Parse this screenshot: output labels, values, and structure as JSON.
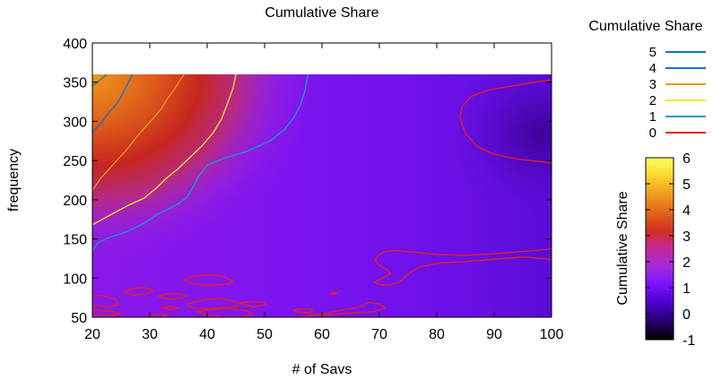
{
  "chart_data": {
    "type": "heatmap",
    "title": "Cumulative Share",
    "xlabel": "# of Savs",
    "ylabel": "frequency",
    "xlim": [
      20,
      100
    ],
    "ylim": [
      50,
      400
    ],
    "data_y_range": [
      50,
      360
    ],
    "x_ticks": [
      20,
      30,
      40,
      50,
      60,
      70,
      80,
      90,
      100
    ],
    "y_ticks": [
      50,
      100,
      150,
      200,
      250,
      300,
      350,
      400
    ],
    "grid": false,
    "contour_legend": {
      "title": "Cumulative Share",
      "entries": [
        {
          "label": "5",
          "color": "#0f7fa6"
        },
        {
          "label": "4",
          "color": "#1a6fd0"
        },
        {
          "label": "3",
          "color": "#e69a1c"
        },
        {
          "label": "2",
          "color": "#f4e638"
        },
        {
          "label": "1",
          "color": "#1899c9"
        },
        {
          "label": "0",
          "color": "#e8201c"
        }
      ]
    },
    "colorbar": {
      "label": "Cumulative Share",
      "ticks": [
        -1,
        0,
        1,
        2,
        3,
        4,
        5,
        6
      ],
      "min": -1,
      "max": 6,
      "palette": [
        "#000000",
        "#25006c",
        "#4c00c8",
        "#7a10ff",
        "#a42adc",
        "#c6269a",
        "#d1311e",
        "#e2661a",
        "#f0a91e",
        "#fbe53a",
        "#ffff60"
      ]
    },
    "series": [
      {
        "name": "5",
        "x": [
          20,
          21.2,
          22.5
        ],
        "y": [
          345,
          352,
          360
        ]
      },
      {
        "name": "4",
        "x": [
          20,
          21.5,
          23,
          24.5,
          25.5,
          26.3,
          27
        ],
        "y": [
          285,
          298,
          312,
          325,
          338,
          350,
          360
        ]
      },
      {
        "name": "3",
        "x": [
          20,
          21.5,
          23,
          24.5,
          26,
          27.5,
          29,
          30.5,
          32,
          33,
          34.2,
          35.2,
          36
        ],
        "y": [
          212,
          228,
          240,
          252,
          264,
          278,
          291,
          303,
          316,
          328,
          340,
          352,
          360
        ]
      },
      {
        "name": "2",
        "x": [
          20,
          23,
          26,
          29,
          31,
          33,
          35,
          37,
          39,
          41,
          42.5,
          43.5,
          44.5,
          45
        ],
        "y": [
          168,
          180,
          192,
          202,
          214,
          228,
          240,
          254,
          268,
          285,
          303,
          322,
          342,
          360
        ]
      },
      {
        "name": "1",
        "x": [
          20,
          21,
          23,
          26,
          29,
          31.5,
          33.5,
          35,
          36.5,
          37.5,
          38.5,
          40,
          43,
          47,
          51,
          53.5,
          55.2,
          56.3,
          57,
          57.3,
          57.6
        ],
        "y": [
          135,
          145,
          152,
          159,
          170,
          182,
          189,
          195,
          203,
          216,
          230,
          244,
          253,
          262,
          275,
          290,
          306,
          322,
          338,
          350,
          360
        ]
      },
      {
        "name": "0",
        "x": [
          100,
          97,
          93,
          89,
          86,
          84.5,
          84,
          85,
          87,
          90,
          94,
          100
        ],
        "y": [
          353,
          350,
          345,
          340,
          332,
          320,
          305,
          285,
          268,
          258,
          252,
          247
        ],
        "closed": false
      },
      {
        "name": "0",
        "x": [
          100,
          95,
          90,
          85,
          80,
          76,
          73,
          71,
          70,
          69.3,
          69.8,
          71,
          72,
          71,
          70,
          69.2,
          69.8,
          71.5,
          73.5,
          75,
          77,
          80,
          85,
          90,
          95,
          100
        ],
        "y": [
          137,
          134,
          131,
          129,
          130,
          133,
          135,
          134,
          130,
          124,
          117,
          112,
          106,
          102,
          98,
          95,
          92,
          91,
          95,
          105,
          114,
          119,
          121,
          124,
          127,
          124
        ]
      },
      {
        "name": "0",
        "x": [
          36,
          37.5,
          40,
          42.5,
          44,
          44.5,
          43,
          40,
          37,
          36
        ],
        "y": [
          98,
          102,
          104,
          103,
          98,
          95,
          92,
          91,
          93,
          98
        ],
        "closed": true
      },
      {
        "name": "0",
        "x": [
          25.5,
          27,
          29,
          30.5,
          29.5,
          27.5,
          25.5
        ],
        "y": [
          82,
          87,
          88,
          84,
          80,
          78,
          82
        ],
        "closed": true
      },
      {
        "name": "0",
        "x": [
          31.5,
          33,
          35,
          36.5,
          35.5,
          33,
          31.5
        ],
        "y": [
          77,
          80,
          80,
          77,
          74,
          73,
          77
        ],
        "closed": true
      },
      {
        "name": "0",
        "x": [
          20,
          22,
          24,
          24.5,
          23,
          21,
          20
        ],
        "y": [
          78,
          77,
          73,
          66,
          63,
          65,
          63
        ]
      },
      {
        "name": "0",
        "x": [
          20,
          22.5,
          25,
          24,
          21,
          20
        ],
        "y": [
          60,
          58,
          55,
          53,
          52,
          52
        ]
      },
      {
        "name": "0",
        "x": [
          32,
          33.5,
          35,
          34,
          32
        ],
        "y": [
          62,
          64,
          62,
          60,
          62
        ],
        "closed": true
      },
      {
        "name": "0",
        "x": [
          38,
          40,
          42,
          44,
          45.5,
          45,
          42,
          39,
          37,
          36.5,
          38
        ],
        "y": [
          70,
          73,
          74,
          72,
          68,
          64,
          62,
          61,
          63,
          67,
          70
        ],
        "closed": true
      },
      {
        "name": "0",
        "x": [
          38,
          41,
          44,
          47,
          48,
          46,
          43,
          40,
          38
        ],
        "y": [
          57,
          60,
          61,
          58,
          54,
          50,
          50,
          53,
          57
        ]
      },
      {
        "name": "0",
        "x": [
          45.5,
          47.5,
          50,
          50.2,
          48,
          45.5
        ],
        "y": [
          68,
          70,
          69,
          66,
          63,
          68
        ],
        "closed": true
      },
      {
        "name": "0",
        "x": [
          30,
          32,
          33,
          32,
          30
        ],
        "y": [
          53,
          54,
          52,
          50,
          50
        ]
      },
      {
        "name": "0",
        "x": [
          55,
          57,
          58.5,
          58,
          56,
          55
        ],
        "y": [
          59,
          61,
          59,
          56,
          56,
          59
        ],
        "closed": true
      },
      {
        "name": "0",
        "x": [
          56,
          58,
          60,
          62,
          64,
          66,
          67,
          68,
          70,
          71,
          69,
          66,
          63,
          60,
          57,
          56
        ],
        "y": [
          50,
          52,
          54,
          57,
          60,
          62,
          65,
          69,
          67,
          62,
          57,
          56,
          54,
          53,
          51,
          50
        ]
      },
      {
        "name": "0",
        "x": [
          61.5,
          62,
          62.8,
          62,
          61.5
        ],
        "y": [
          80,
          82,
          81,
          79,
          80
        ],
        "closed": true
      }
    ]
  }
}
